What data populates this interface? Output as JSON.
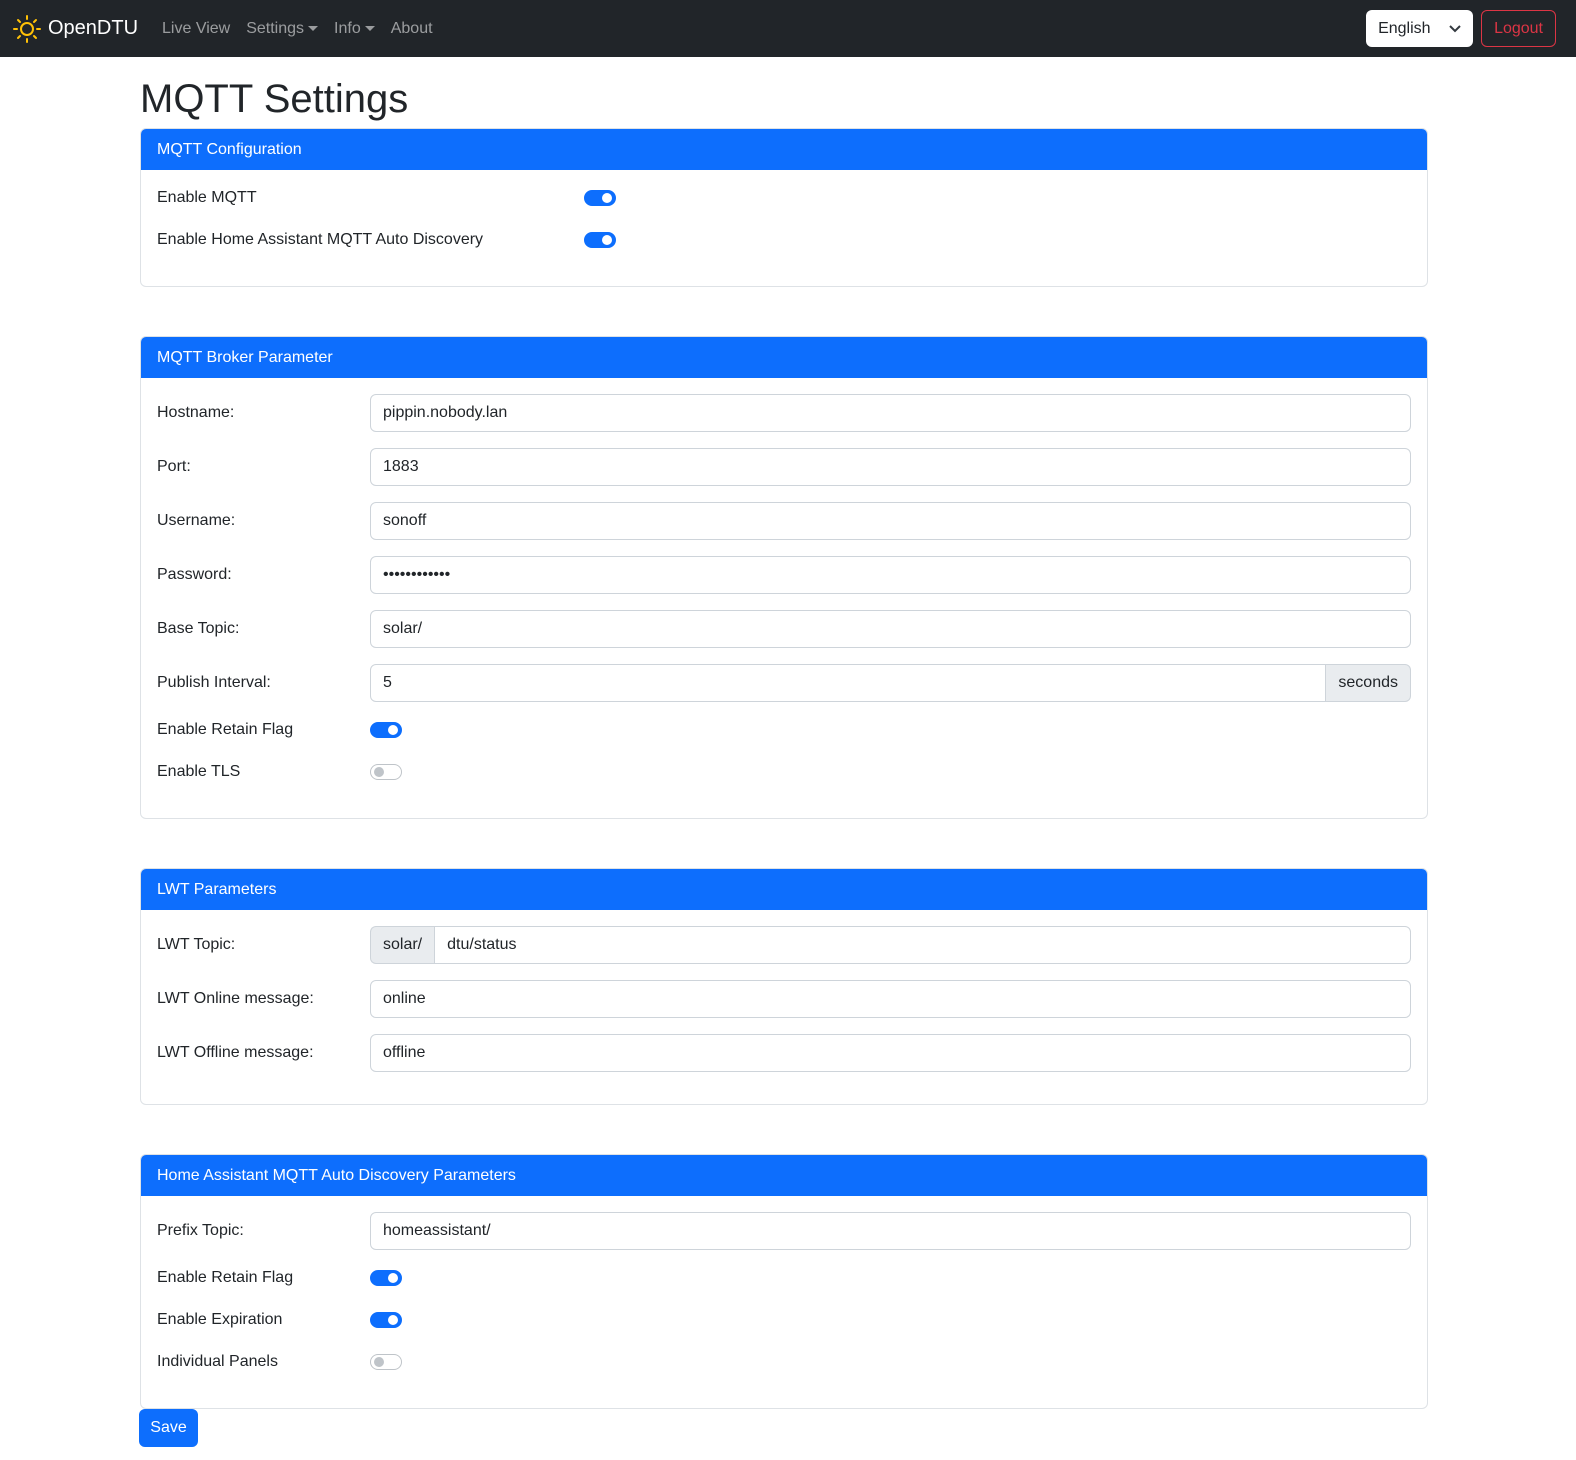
{
  "nav": {
    "brand": "OpenDTU",
    "links": [
      "Live View",
      "Settings",
      "Info",
      "About"
    ],
    "language": "English",
    "logout": "Logout"
  },
  "title": "MQTT Settings",
  "config": {
    "header": "MQTT Configuration",
    "enable_mqtt": {
      "label": "Enable MQTT",
      "on": true
    },
    "enable_ha": {
      "label": "Enable Home Assistant MQTT Auto Discovery",
      "on": true
    }
  },
  "broker": {
    "header": "MQTT Broker Parameter",
    "hostname": {
      "label": "Hostname:",
      "value": "pippin.nobody.lan"
    },
    "port": {
      "label": "Port:",
      "value": "1883"
    },
    "username": {
      "label": "Username:",
      "value": "sonoff"
    },
    "password": {
      "label": "Password:",
      "value": "••••••••••••"
    },
    "base_topic": {
      "label": "Base Topic:",
      "value": "solar/"
    },
    "publish_interval": {
      "label": "Publish Interval:",
      "value": "5",
      "unit": "seconds"
    },
    "retain": {
      "label": "Enable Retain Flag",
      "on": true
    },
    "tls": {
      "label": "Enable TLS",
      "on": false
    }
  },
  "lwt": {
    "header": "LWT Parameters",
    "topic": {
      "label": "LWT Topic:",
      "prefix": "solar/",
      "value": "dtu/status"
    },
    "online": {
      "label": "LWT Online message:",
      "value": "online"
    },
    "offline": {
      "label": "LWT Offline message:",
      "value": "offline"
    }
  },
  "ha": {
    "header": "Home Assistant MQTT Auto Discovery Parameters",
    "prefix": {
      "label": "Prefix Topic:",
      "value": "homeassistant/"
    },
    "retain": {
      "label": "Enable Retain Flag",
      "on": true
    },
    "expiration": {
      "label": "Enable Expiration",
      "on": true
    },
    "individual": {
      "label": "Individual Panels",
      "on": false
    }
  },
  "save": "Save"
}
